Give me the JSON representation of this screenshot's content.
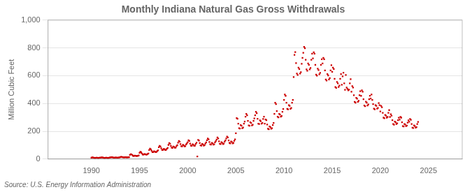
{
  "chart_data": {
    "type": "scatter",
    "title": "Monthly Indiana Natural Gas Gross Withdrawals",
    "y_label": "Million Cubic Feet",
    "source": "Source: U.S. Energy Information Administration",
    "color": "#cc0000",
    "marker": "square",
    "grid": true,
    "xlim": [
      1985.5,
      2028.5
    ],
    "xticks": [
      1990,
      1995,
      2000,
      2005,
      2010,
      2015,
      2020,
      2025
    ],
    "ylim": [
      0,
      1000
    ],
    "yticks": [
      0,
      200,
      400,
      600,
      800,
      {
        "value": 1000,
        "label": "1,000"
      }
    ],
    "x": [
      1990,
      1990.0833333333333,
      1990.1666666666667,
      1990.25,
      1990.3333333333333,
      1990.4166666666667,
      1990.5,
      1990.5833333333333,
      1990.6666666666667,
      1990.75,
      1990.8333333333333,
      1990.9166666666667,
      1991,
      1991.0833333333333,
      1991.1666666666667,
      1991.25,
      1991.3333333333333,
      1991.4166666666667,
      1991.5,
      1991.5833333333333,
      1991.6666666666667,
      1991.75,
      1991.8333333333333,
      1991.9166666666667,
      1992,
      1992.0833333333333,
      1992.1666666666667,
      1992.25,
      1992.3333333333333,
      1992.4166666666667,
      1992.5,
      1992.5833333333333,
      1992.6666666666667,
      1992.75,
      1992.8333333333333,
      1992.9166666666667,
      1993,
      1993.0833333333333,
      1993.1666666666667,
      1993.25,
      1993.3333333333333,
      1993.4166666666667,
      1993.5,
      1993.5833333333333,
      1993.6666666666667,
      1993.75,
      1993.8333333333333,
      1993.9166666666667,
      1994,
      1994.0833333333333,
      1994.1666666666667,
      1994.25,
      1994.3333333333333,
      1994.4166666666667,
      1994.5,
      1994.5833333333333,
      1994.6666666666667,
      1994.75,
      1994.8333333333333,
      1994.9166666666667,
      1995,
      1995.0833333333333,
      1995.1666666666667,
      1995.25,
      1995.3333333333333,
      1995.4166666666667,
      1995.5,
      1995.5833333333333,
      1995.6666666666667,
      1995.75,
      1995.8333333333333,
      1995.9166666666667,
      1996,
      1996.0833333333333,
      1996.1666666666667,
      1996.25,
      1996.3333333333333,
      1996.4166666666667,
      1996.5,
      1996.5833333333333,
      1996.6666666666667,
      1996.75,
      1996.8333333333333,
      1996.9166666666667,
      1997,
      1997.0833333333333,
      1997.1666666666667,
      1997.25,
      1997.3333333333333,
      1997.4166666666667,
      1997.5,
      1997.5833333333333,
      1997.6666666666667,
      1997.75,
      1997.8333333333333,
      1997.9166666666667,
      1998,
      1998.0833333333333,
      1998.1666666666667,
      1998.25,
      1998.3333333333333,
      1998.4166666666667,
      1998.5,
      1998.5833333333333,
      1998.6666666666667,
      1998.75,
      1998.8333333333333,
      1998.9166666666667,
      1999,
      1999.0833333333333,
      1999.1666666666667,
      1999.25,
      1999.3333333333333,
      1999.4166666666667,
      1999.5,
      1999.5833333333333,
      1999.6666666666667,
      1999.75,
      1999.8333333333333,
      1999.9166666666667,
      2000,
      2000.0833333333333,
      2000.1666666666667,
      2000.25,
      2000.3333333333333,
      2000.4166666666667,
      2000.5,
      2000.5833333333333,
      2000.6666666666667,
      2000.75,
      2000.8333333333333,
      2000.9166666666667,
      2001,
      2001.0833333333333,
      2001.1666666666667,
      2001.25,
      2001.3333333333333,
      2001.4166666666667,
      2001.5,
      2001.5833333333333,
      2001.6666666666667,
      2001.75,
      2001.8333333333333,
      2001.9166666666667,
      2002,
      2002.0833333333333,
      2002.1666666666667,
      2002.25,
      2002.3333333333333,
      2002.4166666666667,
      2002.5,
      2002.5833333333333,
      2002.6666666666667,
      2002.75,
      2002.8333333333333,
      2002.9166666666667,
      2003,
      2003.0833333333333,
      2003.1666666666667,
      2003.25,
      2003.3333333333333,
      2003.4166666666667,
      2003.5,
      2003.5833333333333,
      2003.6666666666667,
      2003.75,
      2003.8333333333333,
      2003.9166666666667,
      2004,
      2004.0833333333333,
      2004.1666666666667,
      2004.25,
      2004.3333333333333,
      2004.4166666666667,
      2004.5,
      2004.5833333333333,
      2004.6666666666667,
      2004.75,
      2004.8333333333333,
      2004.9166666666667,
      2005,
      2005.0833333333333,
      2005.1666666666667,
      2005.25,
      2005.3333333333333,
      2005.4166666666667,
      2005.5,
      2005.5833333333333,
      2005.6666666666667,
      2005.75,
      2005.8333333333333,
      2005.9166666666667,
      2006,
      2006.0833333333333,
      2006.1666666666667,
      2006.25,
      2006.3333333333333,
      2006.4166666666667,
      2006.5,
      2006.5833333333333,
      2006.6666666666667,
      2006.75,
      2006.8333333333333,
      2006.9166666666667,
      2007,
      2007.0833333333333,
      2007.1666666666667,
      2007.25,
      2007.3333333333333,
      2007.4166666666667,
      2007.5,
      2007.5833333333333,
      2007.6666666666667,
      2007.75,
      2007.8333333333333,
      2007.9166666666667,
      2008,
      2008.0833333333333,
      2008.1666666666667,
      2008.25,
      2008.3333333333333,
      2008.4166666666667,
      2008.5,
      2008.5833333333333,
      2008.6666666666667,
      2008.75,
      2008.8333333333333,
      2008.9166666666667,
      2009,
      2009.0833333333333,
      2009.1666666666667,
      2009.25,
      2009.3333333333333,
      2009.4166666666667,
      2009.5,
      2009.5833333333333,
      2009.6666666666667,
      2009.75,
      2009.8333333333333,
      2009.9166666666667,
      2010,
      2010.0833333333333,
      2010.1666666666667,
      2010.25,
      2010.3333333333333,
      2010.4166666666667,
      2010.5,
      2010.5833333333333,
      2010.6666666666667,
      2010.75,
      2010.8333333333333,
      2010.9166666666667,
      2011,
      2011.0833333333333,
      2011.1666666666667,
      2011.25,
      2011.3333333333333,
      2011.4166666666667,
      2011.5,
      2011.5833333333333,
      2011.6666666666667,
      2011.75,
      2011.8333333333333,
      2011.9166666666667,
      2012,
      2012.0833333333333,
      2012.1666666666667,
      2012.25,
      2012.3333333333333,
      2012.4166666666667,
      2012.5,
      2012.5833333333333,
      2012.6666666666667,
      2012.75,
      2012.8333333333333,
      2012.9166666666667,
      2013,
      2013.0833333333333,
      2013.1666666666667,
      2013.25,
      2013.3333333333333,
      2013.4166666666667,
      2013.5,
      2013.5833333333333,
      2013.6666666666667,
      2013.75,
      2013.8333333333333,
      2013.9166666666667,
      2014,
      2014.0833333333333,
      2014.1666666666667,
      2014.25,
      2014.3333333333333,
      2014.4166666666667,
      2014.5,
      2014.5833333333333,
      2014.6666666666667,
      2014.75,
      2014.8333333333333,
      2014.9166666666667,
      2015,
      2015.0833333333333,
      2015.1666666666667,
      2015.25,
      2015.3333333333333,
      2015.4166666666667,
      2015.5,
      2015.5833333333333,
      2015.6666666666667,
      2015.75,
      2015.8333333333333,
      2015.9166666666667,
      2016,
      2016.0833333333333,
      2016.1666666666667,
      2016.25,
      2016.3333333333333,
      2016.4166666666667,
      2016.5,
      2016.5833333333333,
      2016.6666666666667,
      2016.75,
      2016.8333333333333,
      2016.9166666666667,
      2017,
      2017.0833333333333,
      2017.1666666666667,
      2017.25,
      2017.3333333333333,
      2017.4166666666667,
      2017.5,
      2017.5833333333333,
      2017.6666666666667,
      2017.75,
      2017.8333333333333,
      2017.9166666666667,
      2018,
      2018.0833333333333,
      2018.1666666666667,
      2018.25,
      2018.3333333333333,
      2018.4166666666667,
      2018.5,
      2018.5833333333333,
      2018.6666666666667,
      2018.75,
      2018.8333333333333,
      2018.9166666666667,
      2019,
      2019.0833333333333,
      2019.1666666666667,
      2019.25,
      2019.3333333333333,
      2019.4166666666667,
      2019.5,
      2019.5833333333333,
      2019.6666666666667,
      2019.75,
      2019.8333333333333,
      2019.9166666666667,
      2020,
      2020.0833333333333,
      2020.1666666666667,
      2020.25,
      2020.3333333333333,
      2020.4166666666667,
      2020.5,
      2020.5833333333333,
      2020.6666666666667,
      2020.75,
      2020.8333333333333,
      2020.9166666666667,
      2021,
      2021.0833333333333,
      2021.1666666666667,
      2021.25,
      2021.3333333333333,
      2021.4166666666667,
      2021.5,
      2021.5833333333333,
      2021.6666666666667,
      2021.75,
      2021.8333333333333,
      2021.9166666666667,
      2022,
      2022.0833333333333,
      2022.1666666666667,
      2022.25,
      2022.3333333333333,
      2022.4166666666667,
      2022.5,
      2022.5833333333333,
      2022.6666666666667,
      2022.75,
      2022.8333333333333,
      2022.9166666666667,
      2023,
      2023.0833333333333,
      2023.1666666666667,
      2023.25,
      2023.3333333333333,
      2023.4166666666667,
      2023.5,
      2023.5833333333333,
      2023.6666666666667,
      2023.75,
      2023.8333333333333,
      2023.9166666666667
    ],
    "values": [
      10,
      12,
      11,
      10,
      9,
      9,
      10,
      10,
      9,
      9,
      10,
      10,
      11,
      12,
      11,
      10,
      9,
      9,
      10,
      10,
      9,
      9,
      10,
      11,
      12,
      14,
      13,
      11,
      10,
      10,
      11,
      11,
      10,
      10,
      11,
      12,
      14,
      16,
      15,
      13,
      12,
      12,
      13,
      13,
      12,
      12,
      13,
      14,
      30,
      35,
      33,
      28,
      22,
      22,
      25,
      24,
      22,
      22,
      24,
      26,
      45,
      52,
      48,
      40,
      32,
      32,
      36,
      35,
      32,
      32,
      36,
      40,
      65,
      75,
      70,
      60,
      50,
      50,
      56,
      54,
      50,
      51,
      57,
      62,
      85,
      95,
      90,
      77,
      66,
      65,
      73,
      71,
      65,
      66,
      74,
      80,
      102,
      115,
      110,
      95,
      82,
      80,
      90,
      87,
      81,
      83,
      93,
      100,
      118,
      130,
      125,
      108,
      93,
      91,
      102,
      99,
      91,
      93,
      105,
      113,
      122,
      135,
      130,
      112,
      97,
      95,
      106,
      103,
      95,
      97,
      109,
      118,
      18,
      138,
      133,
      115,
      99,
      97,
      109,
      105,
      97,
      100,
      112,
      120,
      135,
      148,
      142,
      123,
      106,
      104,
      116,
      113,
      104,
      107,
      120,
      129,
      140,
      155,
      148,
      128,
      110,
      108,
      121,
      117,
      108,
      111,
      125,
      134,
      148,
      162,
      155,
      134,
      116,
      113,
      127,
      123,
      113,
      116,
      131,
      141,
      185,
      295,
      290,
      255,
      222,
      220,
      245,
      240,
      222,
      227,
      255,
      270,
      305,
      325,
      315,
      275,
      242,
      240,
      265,
      260,
      242,
      247,
      275,
      292,
      315,
      340,
      330,
      290,
      255,
      252,
      278,
      272,
      255,
      260,
      288,
      305,
      255,
      285,
      280,
      248,
      218,
      215,
      235,
      230,
      218,
      222,
      245,
      260,
      325,
      405,
      395,
      345,
      305,
      300,
      325,
      320,
      305,
      310,
      340,
      360,
      425,
      465,
      455,
      405,
      362,
      358,
      388,
      383,
      362,
      368,
      405,
      425,
      590,
      750,
      770,
      690,
      615,
      605,
      658,
      648,
      615,
      625,
      685,
      728,
      765,
      808,
      798,
      715,
      645,
      635,
      688,
      678,
      645,
      655,
      715,
      758,
      725,
      768,
      758,
      678,
      608,
      600,
      650,
      640,
      610,
      620,
      678,
      718,
      688,
      728,
      718,
      638,
      572,
      565,
      612,
      602,
      572,
      582,
      638,
      675,
      628,
      658,
      648,
      578,
      518,
      512,
      555,
      545,
      518,
      528,
      578,
      612,
      535,
      595,
      622,
      545,
      498,
      605,
      515,
      505,
      495,
      500,
      545,
      575,
      485,
      525,
      515,
      460,
      412,
      406,
      440,
      434,
      412,
      419,
      460,
      488,
      455,
      495,
      485,
      430,
      385,
      380,
      413,
      406,
      385,
      393,
      430,
      456,
      435,
      465,
      425,
      395,
      363,
      358,
      388,
      383,
      363,
      368,
      403,
      388,
      343,
      383,
      373,
      333,
      298,
      294,
      318,
      313,
      298,
      303,
      333,
      352,
      303,
      323,
      313,
      280,
      252,
      247,
      270,
      265,
      252,
      257,
      280,
      297,
      283,
      303,
      298,
      265,
      237,
      234,
      252,
      248,
      237,
      241,
      262,
      278,
      268,
      288,
      282,
      252,
      226,
      223,
      242,
      237,
      226,
      229,
      252,
      267
    ]
  }
}
